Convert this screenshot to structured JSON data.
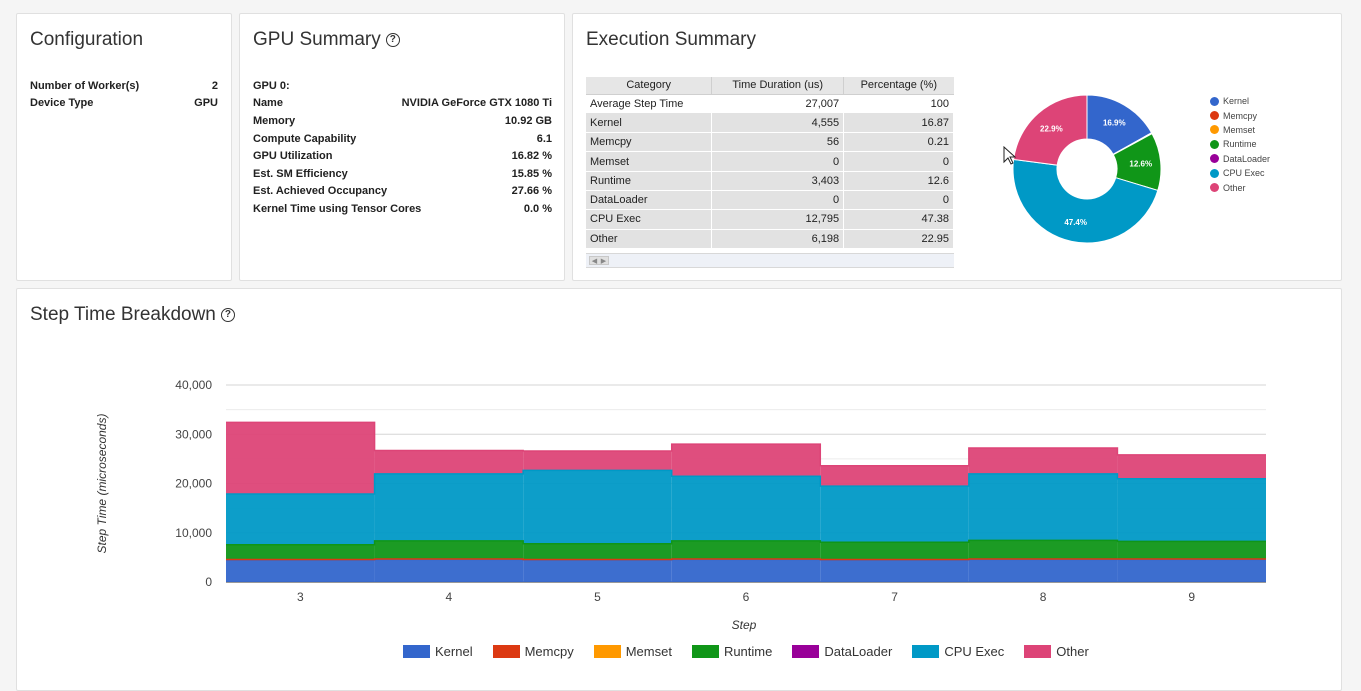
{
  "configuration": {
    "title": "Configuration",
    "rows": [
      {
        "label": "Number of Worker(s)",
        "value": "2"
      },
      {
        "label": "Device Type",
        "value": "GPU"
      }
    ]
  },
  "gpu_summary": {
    "title": "GPU Summary",
    "help_icon": "?",
    "gpu_header": "GPU 0:",
    "rows": [
      {
        "label": "Name",
        "value": "NVIDIA GeForce GTX 1080 Ti"
      },
      {
        "label": "Memory",
        "value": "10.92 GB"
      },
      {
        "label": "Compute Capability",
        "value": "6.1"
      },
      {
        "label": "GPU Utilization",
        "value": "16.82 %"
      },
      {
        "label": "Est. SM Efficiency",
        "value": "15.85 %"
      },
      {
        "label": "Est. Achieved Occupancy",
        "value": "27.66 %"
      },
      {
        "label": "Kernel Time using Tensor Cores",
        "value": "0.0 %"
      }
    ]
  },
  "execution_summary": {
    "title": "Execution Summary",
    "table": {
      "headers": [
        "Category",
        "Time Duration (us)",
        "Percentage (%)"
      ],
      "rows": [
        [
          "Average Step Time",
          "27,007",
          "100"
        ],
        [
          "Kernel",
          "4,555",
          "16.87"
        ],
        [
          "Memcpy",
          "56",
          "0.21"
        ],
        [
          "Memset",
          "0",
          "0"
        ],
        [
          "Runtime",
          "3,403",
          "12.6"
        ],
        [
          "DataLoader",
          "0",
          "0"
        ],
        [
          "CPU Exec",
          "12,795",
          "47.38"
        ],
        [
          "Other",
          "6,198",
          "22.95"
        ]
      ]
    },
    "legend": [
      "Kernel",
      "Memcpy",
      "Memset",
      "Runtime",
      "DataLoader",
      "CPU Exec",
      "Other"
    ],
    "slice_labels": [
      "16.9%",
      "12.6%",
      "47.4%",
      "22.9%"
    ]
  },
  "step_time_breakdown": {
    "title": "Step Time Breakdown",
    "help_icon": "?",
    "legend": [
      "Kernel",
      "Memcpy",
      "Memset",
      "Runtime",
      "DataLoader",
      "CPU Exec",
      "Other"
    ]
  },
  "colors": {
    "Kernel": "#3366cc",
    "Memcpy": "#dc3912",
    "Memset": "#ff9900",
    "Runtime": "#109618",
    "DataLoader": "#990099",
    "CPU Exec": "#0099c6",
    "Other": "#dd4477"
  },
  "chart_data": [
    {
      "type": "pie",
      "title": "Execution Summary",
      "donut": true,
      "categories": [
        "Kernel",
        "Memcpy",
        "Memset",
        "Runtime",
        "DataLoader",
        "CPU Exec",
        "Other"
      ],
      "values": [
        16.87,
        0.21,
        0,
        12.6,
        0,
        47.38,
        22.95
      ],
      "slice_labels": [
        {
          "category": "Kernel",
          "text": "16.9%"
        },
        {
          "category": "Runtime",
          "text": "12.6%"
        },
        {
          "category": "CPU Exec",
          "text": "47.4%"
        },
        {
          "category": "Other",
          "text": "22.9%"
        }
      ],
      "legend_position": "right"
    },
    {
      "type": "area",
      "stacked": true,
      "title": "Step Time Breakdown",
      "xlabel": "Step",
      "ylabel": "Step Time (microseconds)",
      "x": [
        3,
        4,
        5,
        6,
        7,
        8,
        9
      ],
      "ylim": [
        0,
        40000
      ],
      "yticks": [
        0,
        10000,
        20000,
        30000,
        40000
      ],
      "ytick_labels": [
        "0",
        "10,000",
        "20,000",
        "30,000",
        "40,000"
      ],
      "series": [
        {
          "name": "Kernel",
          "values": [
            4500,
            4600,
            4500,
            4600,
            4500,
            4600,
            4600
          ]
        },
        {
          "name": "Memcpy",
          "values": [
            60,
            60,
            60,
            60,
            60,
            60,
            60
          ]
        },
        {
          "name": "Memset",
          "values": [
            0,
            0,
            0,
            0,
            0,
            0,
            0
          ]
        },
        {
          "name": "Runtime",
          "values": [
            3000,
            3700,
            3200,
            3700,
            3500,
            3800,
            3600
          ]
        },
        {
          "name": "DataLoader",
          "values": [
            0,
            0,
            0,
            0,
            0,
            0,
            0
          ]
        },
        {
          "name": "CPU Exec",
          "values": [
            10300,
            13600,
            14900,
            13100,
            11400,
            13500,
            12700
          ]
        },
        {
          "name": "Other",
          "values": [
            14540,
            4740,
            3940,
            6540,
            4140,
            5240,
            4840
          ]
        }
      ],
      "legend_position": "bottom"
    }
  ]
}
